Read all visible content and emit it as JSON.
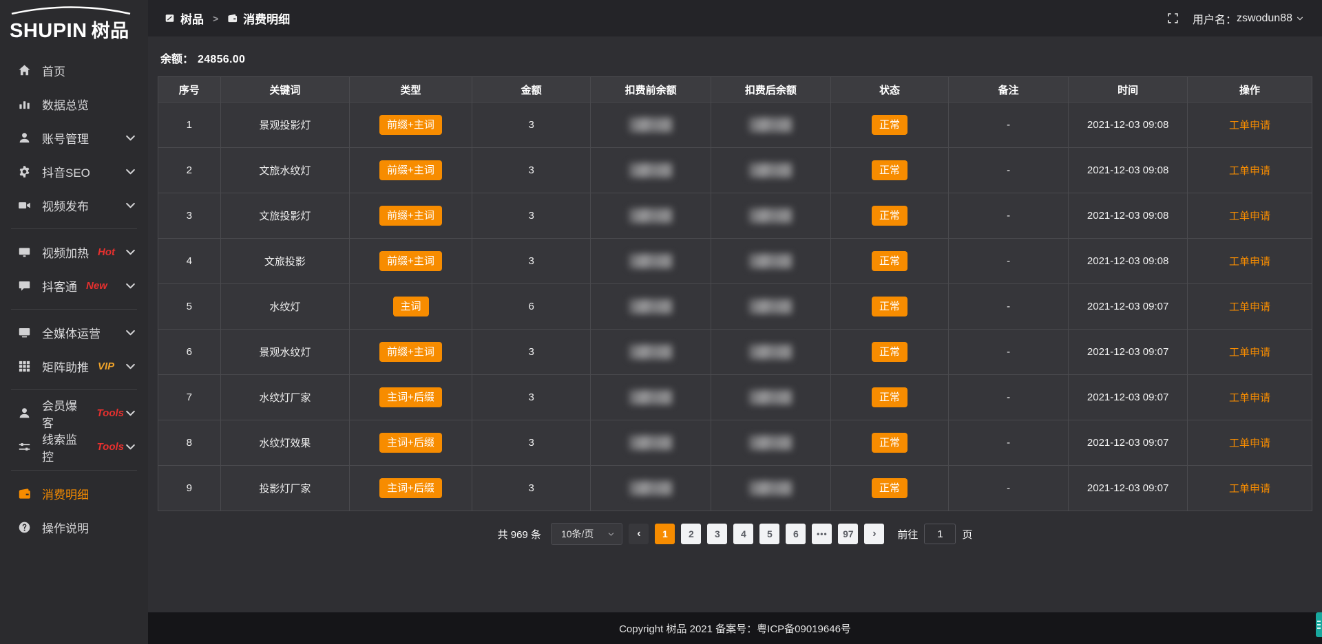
{
  "accent": "#f78c00",
  "logo": {
    "brand_en": "SHUPIN",
    "brand_cn": "树品"
  },
  "topbar": {
    "breadcrumb": [
      {
        "icon": "dashboard-icon",
        "label": "树品"
      },
      {
        "icon": "wallet-icon",
        "label": "消费明细"
      }
    ],
    "separator": ">",
    "username_label": "用户名：",
    "username": "zswodun88"
  },
  "sidebar": {
    "items": [
      {
        "id": "home",
        "icon": "home-icon",
        "label": "首页"
      },
      {
        "id": "data-overview",
        "icon": "bar-chart-icon",
        "label": "数据总览"
      },
      {
        "id": "account-management",
        "icon": "user-icon",
        "label": "账号管理",
        "chevron": true
      },
      {
        "id": "douyin-seo",
        "icon": "gear-icon",
        "label": "抖音SEO",
        "chevron": true
      },
      {
        "id": "video-publish",
        "icon": "video-camera-icon",
        "label": "视频发布",
        "chevron": true,
        "divider_after": true
      },
      {
        "id": "video-heat",
        "icon": "screen-icon",
        "label": "视频加热",
        "tag": "Hot",
        "tag_color": "#e7302e",
        "chevron": true
      },
      {
        "id": "douketong",
        "icon": "chat-icon",
        "label": "抖客通",
        "tag": "New",
        "tag_color": "#e7302e",
        "chevron": true,
        "divider_after": true
      },
      {
        "id": "media-operation",
        "icon": "monitor-icon",
        "label": "全媒体运营",
        "chevron": true
      },
      {
        "id": "matrix-boost",
        "icon": "grid-icon",
        "label": "矩阵助推",
        "tag": "VIP",
        "tag_color": "#f0a32a",
        "chevron": true,
        "divider_after": true
      },
      {
        "id": "member-burst",
        "icon": "user-icon",
        "label": "会员爆客",
        "tag": "Tools",
        "tag_color": "#e7302e",
        "chevron": true
      },
      {
        "id": "clue-monitor",
        "icon": "sliders-icon",
        "label": "线索监控",
        "tag": "Tools",
        "tag_color": "#e7302e",
        "chevron": true,
        "divider_after": true
      },
      {
        "id": "consumption-detail",
        "icon": "wallet-icon",
        "label": "消费明细",
        "active": true
      },
      {
        "id": "instructions",
        "icon": "question-icon",
        "label": "操作说明"
      }
    ]
  },
  "balance": {
    "label": "余额：",
    "value": "24856.00"
  },
  "table": {
    "columns": [
      "序号",
      "关键词",
      "类型",
      "金额",
      "扣费前余额",
      "扣费后余额",
      "状态",
      "备注",
      "时间",
      "操作"
    ],
    "rows": [
      {
        "index": "1",
        "keyword": "景观投影灯",
        "type": "前缀+主词",
        "amount": "3",
        "status": "正常",
        "note": "-",
        "time": "2021-12-03 09:08",
        "action": "工单申请"
      },
      {
        "index": "2",
        "keyword": "文旅水纹灯",
        "type": "前缀+主词",
        "amount": "3",
        "status": "正常",
        "note": "-",
        "time": "2021-12-03 09:08",
        "action": "工单申请"
      },
      {
        "index": "3",
        "keyword": "文旅投影灯",
        "type": "前缀+主词",
        "amount": "3",
        "status": "正常",
        "note": "-",
        "time": "2021-12-03 09:08",
        "action": "工单申请"
      },
      {
        "index": "4",
        "keyword": "文旅投影",
        "type": "前缀+主词",
        "amount": "3",
        "status": "正常",
        "note": "-",
        "time": "2021-12-03 09:08",
        "action": "工单申请"
      },
      {
        "index": "5",
        "keyword": "水纹灯",
        "type": "主词",
        "amount": "6",
        "status": "正常",
        "note": "-",
        "time": "2021-12-03 09:07",
        "action": "工单申请"
      },
      {
        "index": "6",
        "keyword": "景观水纹灯",
        "type": "前缀+主词",
        "amount": "3",
        "status": "正常",
        "note": "-",
        "time": "2021-12-03 09:07",
        "action": "工单申请"
      },
      {
        "index": "7",
        "keyword": "水纹灯厂家",
        "type": "主词+后缀",
        "amount": "3",
        "status": "正常",
        "note": "-",
        "time": "2021-12-03 09:07",
        "action": "工单申请"
      },
      {
        "index": "8",
        "keyword": "水纹灯效果",
        "type": "主词+后缀",
        "amount": "3",
        "status": "正常",
        "note": "-",
        "time": "2021-12-03 09:07",
        "action": "工单申请"
      },
      {
        "index": "9",
        "keyword": "投影灯厂家",
        "type": "主词+后缀",
        "amount": "3",
        "status": "正常",
        "note": "-",
        "time": "2021-12-03 09:07",
        "action": "工单申请"
      }
    ]
  },
  "pagination": {
    "total_label": "共 969 条",
    "page_size": "10条/页",
    "pages": [
      "1",
      "2",
      "3",
      "4",
      "5",
      "6",
      "...",
      "97"
    ],
    "active_page": "1",
    "prev_label": "‹",
    "next_label": "›",
    "goto_label": "前往",
    "goto_value": "1",
    "goto_suffix": "页"
  },
  "footer": {
    "copyright": "Copyright 树品 2021 备案号：粤ICP备09019646号"
  }
}
